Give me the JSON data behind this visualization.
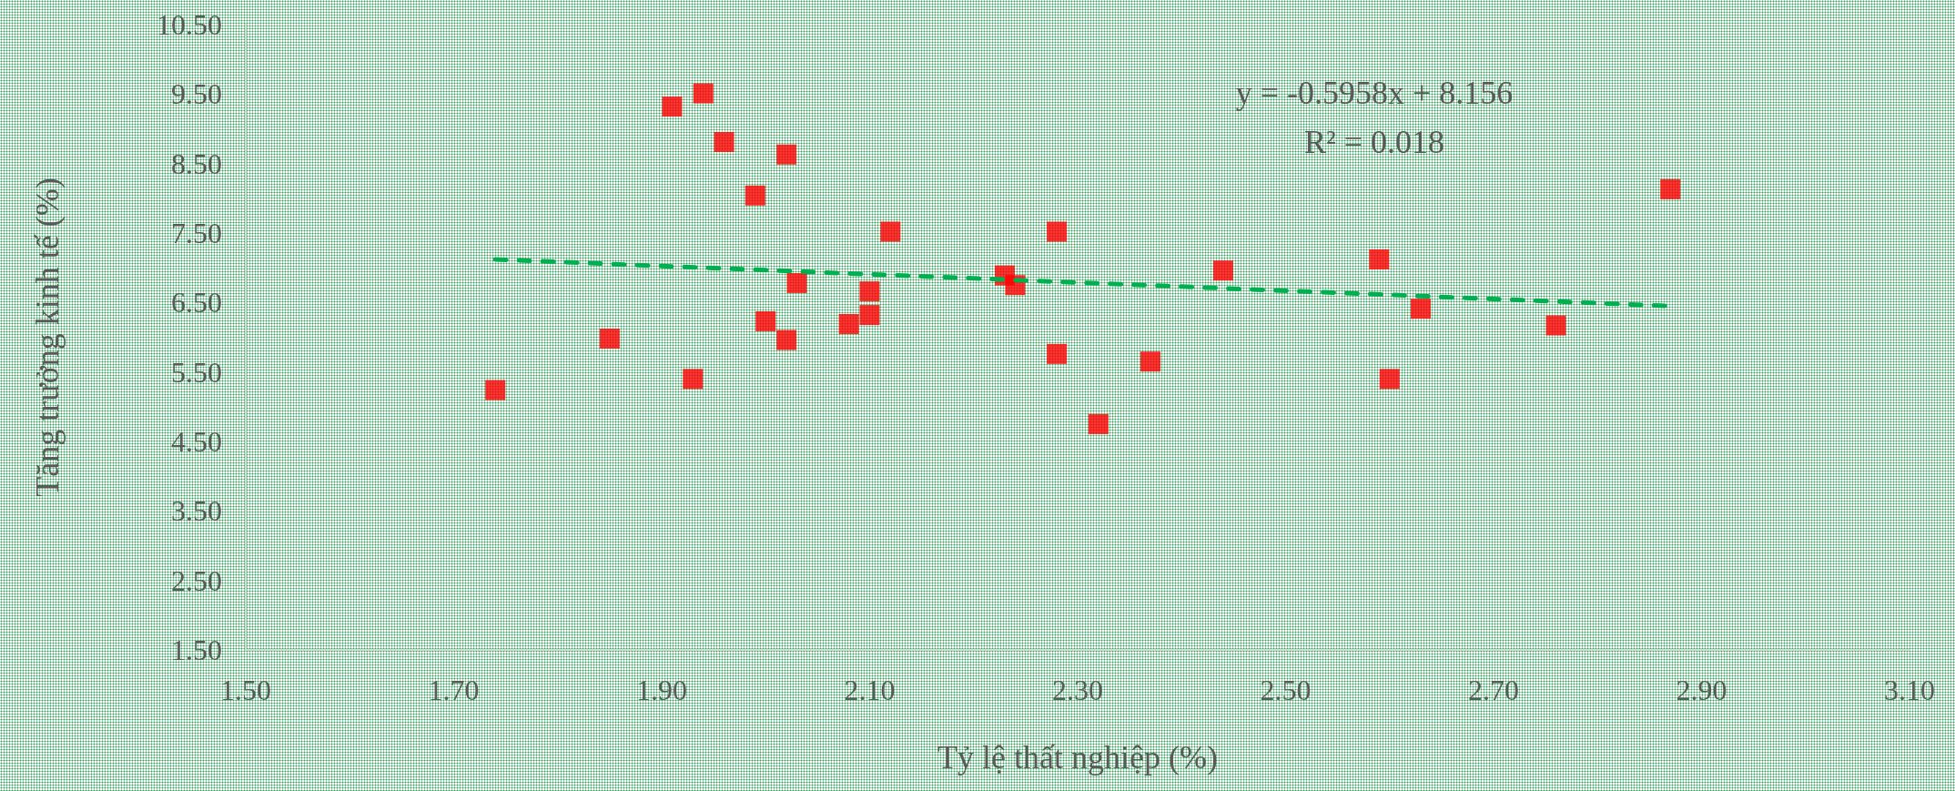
{
  "chart_data": {
    "type": "scatter",
    "xlabel": "Tỷ lệ thất nghiệp (%)",
    "ylabel": "Tăng trưởng kinh tế (%)",
    "xlim": [
      1.5,
      3.1
    ],
    "ylim": [
      1.5,
      10.5
    ],
    "xticks": [
      {
        "value": 1.5,
        "label": "1.50"
      },
      {
        "value": 1.7,
        "label": "1.70"
      },
      {
        "value": 1.9,
        "label": "1.90"
      },
      {
        "value": 2.1,
        "label": "2.10"
      },
      {
        "value": 2.3,
        "label": "2.30"
      },
      {
        "value": 2.5,
        "label": "2.50"
      },
      {
        "value": 2.7,
        "label": "2.70"
      },
      {
        "value": 2.9,
        "label": "2.90"
      },
      {
        "value": 3.1,
        "label": "3.10"
      }
    ],
    "yticks": [
      {
        "value": 1.5,
        "label": "1.50"
      },
      {
        "value": 2.5,
        "label": "2.50"
      },
      {
        "value": 3.5,
        "label": "3.50"
      },
      {
        "value": 4.5,
        "label": "4.50"
      },
      {
        "value": 5.5,
        "label": "5.50"
      },
      {
        "value": 6.5,
        "label": "6.50"
      },
      {
        "value": 7.5,
        "label": "7.50"
      },
      {
        "value": 8.5,
        "label": "8.50"
      },
      {
        "value": 9.5,
        "label": "9.50"
      },
      {
        "value": 10.5,
        "label": "10.50"
      }
    ],
    "grid": false,
    "marker": "square",
    "annotations": [
      "y = -0.5958x + 8.156",
      "R² = 0.018"
    ],
    "series": [
      {
        "color": "#ff0000",
        "x": [
          1.74,
          1.85,
          1.91,
          1.93,
          1.94,
          1.96,
          1.99,
          2.0,
          2.02,
          2.02,
          2.03,
          2.08,
          2.1,
          2.1,
          2.12,
          2.23,
          2.24,
          2.28,
          2.28,
          2.32,
          2.37,
          2.44,
          2.59,
          2.6,
          2.63,
          2.76,
          2.87
        ],
        "values": [
          5.24,
          5.98,
          9.32,
          5.4,
          9.51,
          8.81,
          8.04,
          6.23,
          8.63,
          5.96,
          6.78,
          6.19,
          6.66,
          6.32,
          7.52,
          6.89,
          6.75,
          5.76,
          7.52,
          4.75,
          5.65,
          6.96,
          7.12,
          5.4,
          6.41,
          6.17,
          8.13
        ]
      },
      {
        "type": "line",
        "color": "#00b050",
        "line_style": "dashed",
        "marker": "none",
        "x": [
          1.74,
          2.87
        ],
        "values": [
          7.12,
          6.45
        ]
      }
    ]
  }
}
